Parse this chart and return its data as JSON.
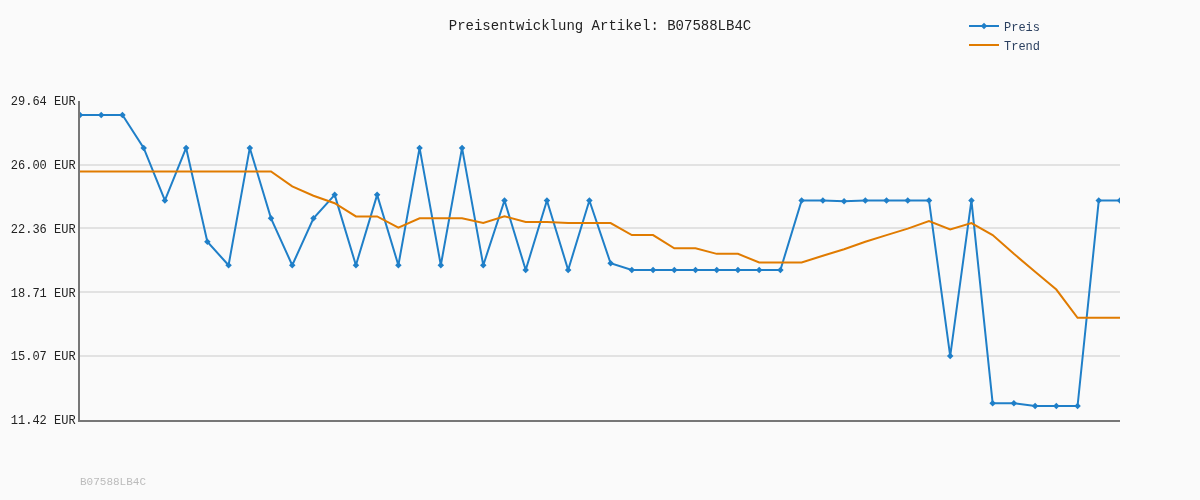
{
  "chart_data": {
    "type": "line",
    "title": "Preisentwicklung Artikel: B07588LB4C",
    "categories": [
      null,
      null,
      null,
      null,
      null,
      null,
      null,
      null,
      null,
      null,
      null,
      null,
      null,
      null,
      null,
      null,
      null,
      null,
      null,
      null,
      null,
      null,
      null,
      null,
      null,
      null,
      null,
      null,
      null,
      null,
      null,
      null,
      null,
      null,
      null,
      null,
      null,
      null,
      null,
      null,
      null,
      null,
      null,
      null,
      null,
      null,
      null,
      null,
      null,
      null
    ],
    "series": [
      {
        "name": "Preis",
        "color": "#1f7fc8",
        "marker": "diamond",
        "values": [
          28.84,
          28.84,
          28.84,
          26.96,
          23.96,
          26.96,
          21.6,
          20.26,
          26.96,
          22.94,
          20.26,
          22.94,
          24.28,
          20.26,
          24.28,
          20.26,
          26.96,
          20.26,
          26.96,
          20.26,
          23.96,
          19.99,
          23.96,
          19.99,
          23.96,
          20.37,
          19.99,
          19.99,
          19.99,
          19.99,
          19.99,
          19.99,
          19.99,
          19.99,
          23.96,
          23.96,
          23.91,
          23.96,
          23.96,
          23.96,
          23.96,
          15.07,
          23.96,
          12.38,
          12.38,
          12.22,
          12.22,
          12.22,
          23.96,
          23.96
        ]
      },
      {
        "name": "Trend",
        "color": "#e07b00",
        "marker": "none",
        "values": [
          25.62,
          25.62,
          25.62,
          25.62,
          25.62,
          25.62,
          25.62,
          25.62,
          25.62,
          25.62,
          24.76,
          24.23,
          23.8,
          23.05,
          23.05,
          22.41,
          22.94,
          22.94,
          22.94,
          22.67,
          23.05,
          22.73,
          22.73,
          22.67,
          22.67,
          22.67,
          21.98,
          21.98,
          21.23,
          21.23,
          20.91,
          20.91,
          20.42,
          20.42,
          20.42,
          20.8,
          21.17,
          21.6,
          21.98,
          22.35,
          22.78,
          22.3,
          22.67,
          21.98,
          20.91,
          19.89,
          18.87,
          17.26,
          17.26,
          17.26
        ]
      }
    ],
    "ylim": [
      11.42,
      29.64
    ],
    "yticks": [
      {
        "value": 11.42,
        "label": "11.42 EUR"
      },
      {
        "value": 15.07,
        "label": "15.07 EUR"
      },
      {
        "value": 18.71,
        "label": "18.71 EUR"
      },
      {
        "value": 22.36,
        "label": "22.36 EUR"
      },
      {
        "value": 26.0,
        "label": "26.00 EUR"
      },
      {
        "value": 29.64,
        "label": "29.64 EUR"
      }
    ],
    "grid": "y",
    "legend": "top right",
    "line_style": "solid",
    "annotations": [
      "B07588LB4C"
    ]
  }
}
